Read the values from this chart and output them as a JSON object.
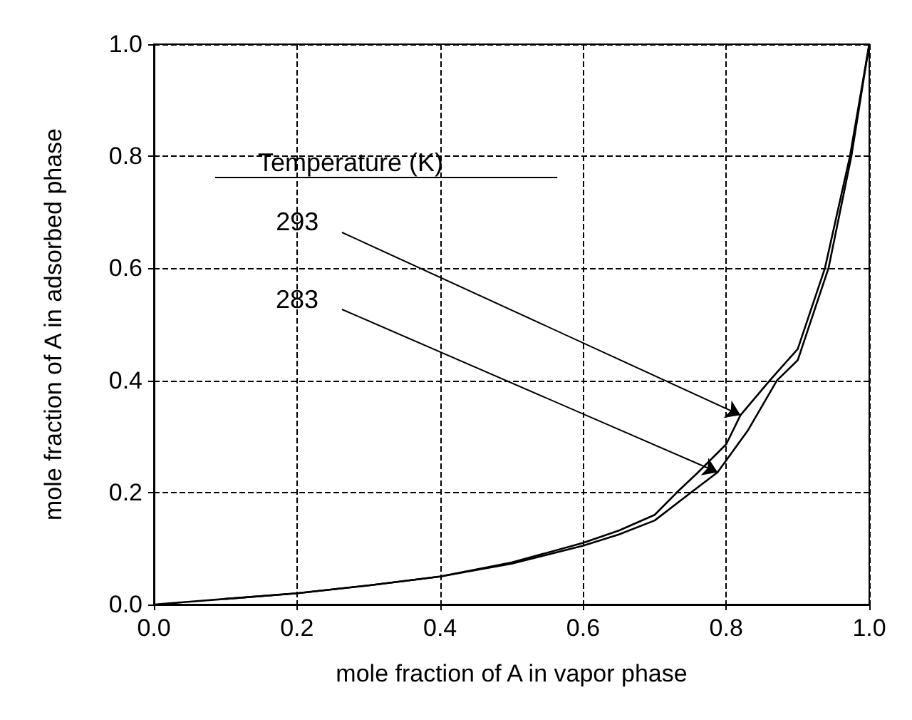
{
  "chart_data": {
    "type": "line",
    "xlabel": "mole fraction of A in vapor phase",
    "ylabel": "mole fraction of A in adsorbed phase",
    "legend_title": "Temperature (K)",
    "xlim": [
      0,
      1
    ],
    "xticks": [
      {
        "value": 0,
        "label": "0.0"
      },
      0.2,
      0.4,
      0.6,
      0.8,
      {
        "value": 1,
        "label": "1.0"
      }
    ],
    "ylim": [
      0,
      1
    ],
    "yticks": [
      {
        "value": 0,
        "label": "0.0"
      },
      0.2,
      0.4,
      0.6,
      0.8,
      {
        "value": 1,
        "label": "1.0"
      }
    ],
    "grid": true,
    "marker": "none",
    "line_style": "solid",
    "series": [
      {
        "color": "#000000",
        "x": [
          0,
          0.1,
          0.2,
          0.3,
          0.4,
          0.5,
          0.6,
          0.65,
          0.7,
          0.731,
          0.76,
          0.8,
          0.82,
          0.861,
          0.9,
          0.938,
          0.973,
          1
        ],
        "values": [
          0,
          0.01,
          0.02,
          0.034,
          0.05,
          0.075,
          0.11,
          0.132,
          0.16,
          0.2,
          0.235,
          0.286,
          0.338,
          0.4,
          0.456,
          0.6,
          0.8,
          1
        ]
      },
      {
        "color": "#000000",
        "x": [
          0.1,
          0.2,
          0.3,
          0.4,
          0.5,
          0.6,
          0.65,
          0.7,
          0.751,
          0.788,
          0.83,
          0.871,
          0.9,
          0.943,
          0.975,
          1
        ],
        "values": [
          0.01,
          0.02,
          0.034,
          0.05,
          0.073,
          0.105,
          0.125,
          0.15,
          0.2,
          0.236,
          0.31,
          0.4,
          0.436,
          0.6,
          0.8,
          1
        ]
      }
    ],
    "annotations": [
      {
        "text": "293",
        "x": 0.82,
        "y": 0.338
      },
      {
        "text": "283",
        "x": 0.788,
        "y": 0.236
      }
    ]
  }
}
